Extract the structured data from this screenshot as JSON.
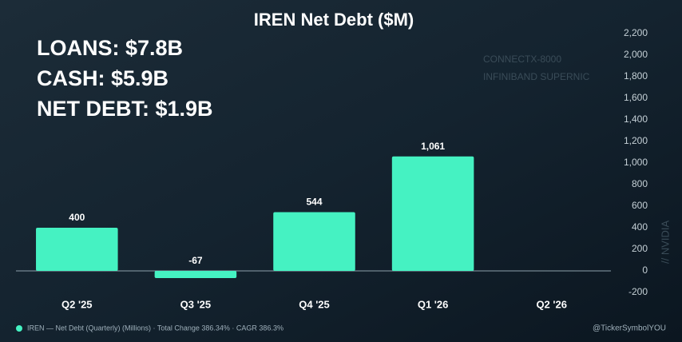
{
  "chart_data": {
    "type": "bar",
    "title": "IREN Net Debt ($M)",
    "annotations": [
      "LOANS: $7.8B",
      "CASH: $5.9B",
      "NET DEBT: $1.9B"
    ],
    "background_texts": [
      "CONNECTX-8000",
      "INFINIBAND SUPERNIC",
      "// NVIDIA"
    ],
    "categories": [
      "Q2 '25",
      "Q3 '25",
      "Q4 '25",
      "Q1 '26",
      "Q2 '26"
    ],
    "values": [
      400,
      -67,
      544,
      1061,
      null
    ],
    "value_labels": [
      "400",
      "-67",
      "544",
      "1,061",
      null
    ],
    "color": "#45f2c2",
    "ylim": [
      -200,
      2200
    ],
    "yticks": [
      -200,
      0,
      200,
      400,
      600,
      800,
      {
        "value": 1000,
        "label": "1,000"
      },
      {
        "value": 1200,
        "label": "1,200"
      },
      {
        "value": 1400,
        "label": "1,400"
      },
      {
        "value": 1600,
        "label": "1,600"
      },
      {
        "value": 1800,
        "label": "1,800"
      },
      {
        "value": 2000,
        "label": "2,000"
      },
      {
        "value": 2200,
        "label": "2,200"
      }
    ],
    "legend": "IREN — Net Debt (Quarterly) (Millions) · Total Change 386.34% · CAGR 386.3%",
    "watermark": "@TickerSymbolYOU"
  }
}
